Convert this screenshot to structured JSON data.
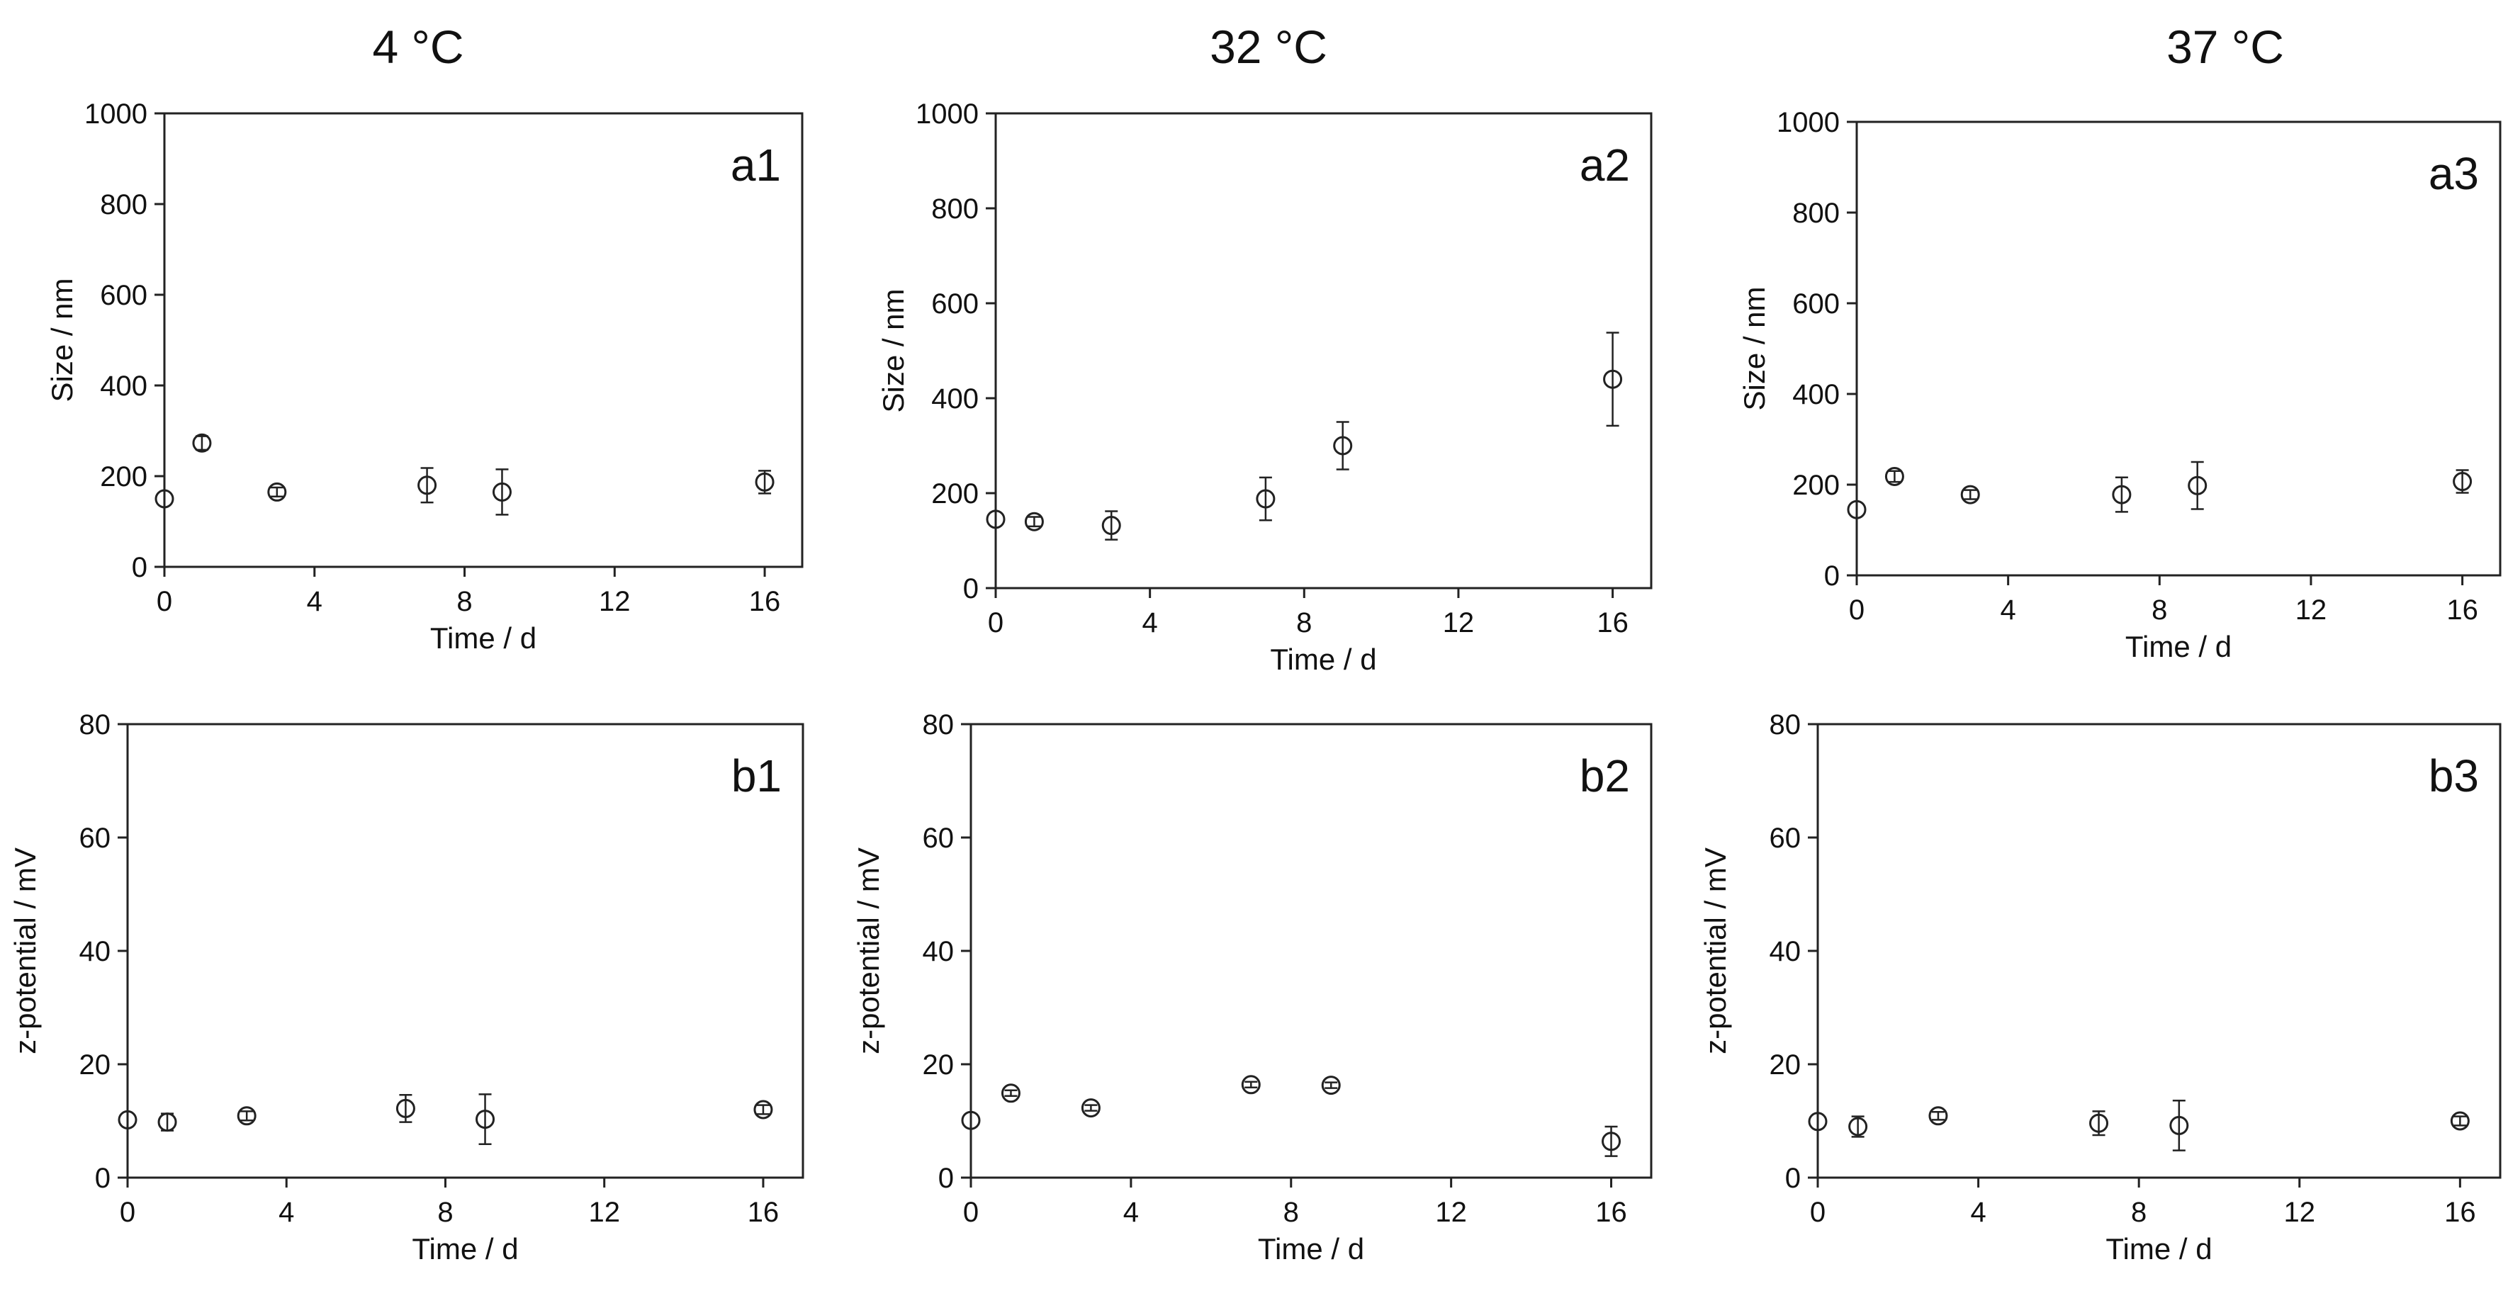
{
  "column_titles": [
    "4 °C",
    "32 °C",
    "37 °C"
  ],
  "chart_data": [
    {
      "type": "scatter",
      "panel_label": "a1",
      "xlabel": "Time / d",
      "ylabel": "Size / nm",
      "xlim": [
        0,
        17
      ],
      "ylim": [
        0,
        1000
      ],
      "xticks": [
        0,
        4,
        8,
        12,
        16
      ],
      "yticks": [
        0,
        200,
        400,
        600,
        800,
        1000
      ],
      "x": [
        0,
        1,
        3,
        7,
        9,
        16
      ],
      "y": [
        150,
        273,
        165,
        180,
        165,
        187
      ],
      "err": [
        0,
        15,
        10,
        38,
        50,
        25
      ]
    },
    {
      "type": "scatter",
      "panel_label": "a2",
      "xlabel": "Time / d",
      "ylabel": "Size / nm",
      "xlim": [
        0,
        17
      ],
      "ylim": [
        0,
        1000
      ],
      "xticks": [
        0,
        4,
        8,
        12,
        16
      ],
      "yticks": [
        0,
        200,
        400,
        600,
        800,
        1000
      ],
      "x": [
        0,
        1,
        3,
        7,
        9,
        16
      ],
      "y": [
        145,
        140,
        132,
        188,
        300,
        440
      ],
      "err": [
        0,
        10,
        30,
        45,
        50,
        98
      ]
    },
    {
      "type": "scatter",
      "panel_label": "a3",
      "xlabel": "Time / d",
      "ylabel": "Size / nm",
      "xlim": [
        0,
        17
      ],
      "ylim": [
        0,
        1000
      ],
      "xticks": [
        0,
        4,
        8,
        12,
        16
      ],
      "yticks": [
        0,
        200,
        400,
        600,
        800,
        1000
      ],
      "x": [
        0,
        1,
        3,
        7,
        9,
        16
      ],
      "y": [
        145,
        218,
        178,
        178,
        198,
        207
      ],
      "err": [
        0,
        12,
        10,
        38,
        52,
        25
      ]
    },
    {
      "type": "scatter",
      "panel_label": "b1",
      "xlabel": "Time / d",
      "ylabel": "z-potential / mV",
      "xlim": [
        0,
        17
      ],
      "ylim": [
        0,
        80
      ],
      "xticks": [
        0,
        4,
        8,
        12,
        16
      ],
      "yticks": [
        0,
        20,
        40,
        60,
        80
      ],
      "x": [
        0,
        1,
        3,
        7,
        9,
        16
      ],
      "y": [
        10.2,
        9.8,
        10.9,
        12.2,
        10.3,
        12.0
      ],
      "err": [
        0,
        1.5,
        0.8,
        2.4,
        4.4,
        0.8
      ]
    },
    {
      "type": "scatter",
      "panel_label": "b2",
      "xlabel": "Time / d",
      "ylabel": "z-potential / mV",
      "xlim": [
        0,
        17
      ],
      "ylim": [
        0,
        80
      ],
      "xticks": [
        0,
        4,
        8,
        12,
        16
      ],
      "yticks": [
        0,
        20,
        40,
        60,
        80
      ],
      "x": [
        0,
        1,
        3,
        7,
        9,
        16
      ],
      "y": [
        10.1,
        14.9,
        12.3,
        16.4,
        16.3,
        6.4
      ],
      "err": [
        0,
        0.5,
        0.5,
        0.5,
        0.5,
        2.6
      ]
    },
    {
      "type": "scatter",
      "panel_label": "b3",
      "xlabel": "Time / d",
      "ylabel": "z-potential / mV",
      "xlim": [
        0,
        17
      ],
      "ylim": [
        0,
        80
      ],
      "xticks": [
        0,
        4,
        8,
        12,
        16
      ],
      "yticks": [
        0,
        20,
        40,
        60,
        80
      ],
      "x": [
        0,
        1,
        3,
        7,
        9,
        16
      ],
      "y": [
        9.9,
        9.0,
        10.9,
        9.6,
        9.2,
        10.0
      ],
      "err": [
        0,
        1.8,
        0.7,
        2.1,
        4.4,
        0.8
      ]
    }
  ]
}
